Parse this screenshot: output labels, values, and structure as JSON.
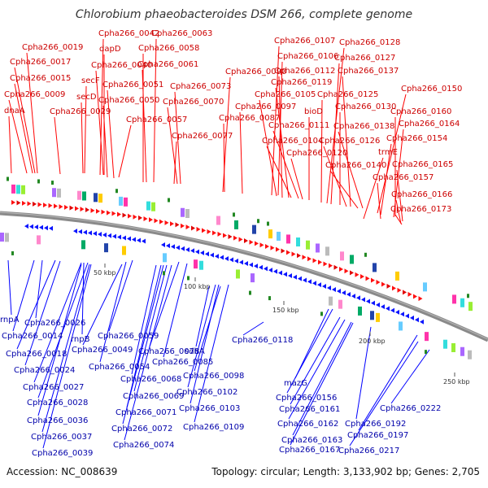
{
  "title": "Chlorobium phaeobacteroides DSM 266, complete genome",
  "accession_text": "Accession: NC_008639",
  "summary_text": "Topology: circular; Length: 3,133,902 bp; Genes: 2,705",
  "colors": {
    "forward_label": "#cc0000",
    "forward_line": "#ff0000",
    "reverse_label": "#0000aa",
    "reverse_line": "#0000ff",
    "backbone": "#808080",
    "scale_text": "#333333"
  },
  "scale_ticks": [
    "50 kbp",
    "100 kbp",
    "150 kbp",
    "200 kbp",
    "250 kbp"
  ],
  "forward_labels": [
    "Cpha266_0019",
    "Cpha266_0017",
    "Cpha266_0015",
    "Cpha266_0009",
    "dnaA",
    "Cpha266_0042",
    "dapD",
    "Cpha266_0040",
    "secF",
    "secD",
    "Cpha266_0029",
    "Cpha266_0063",
    "Cpha266_0058",
    "Cpha266_0061",
    "Cpha266_0051",
    "Cpha266_0050",
    "Cpha266_0057",
    "Cpha266_0073",
    "Cpha266_0070",
    "Cpha266_0077",
    "Cpha266_0090",
    "Cpha266_0097",
    "Cpha266_0087",
    "Cpha266_0107",
    "Cpha266_0106",
    "Cpha266_0112",
    "Cpha266_0119",
    "Cpha266_0105",
    "bioD",
    "Cpha266_0111",
    "Cpha266_0104",
    "Cpha266_0120",
    "Cpha266_0128",
    "Cpha266_0127",
    "Cpha266_0137",
    "Cpha266_0125",
    "Cpha266_0130",
    "Cpha266_0138",
    "Cpha266_0126",
    "Cpha266_0140",
    "Cpha266_0150",
    "Cpha266_0160",
    "Cpha266_0164",
    "Cpha266_0154",
    "trmE",
    "Cpha266_0165",
    "Cpha266_0157",
    "Cpha266_0166",
    "Cpha266_0173"
  ],
  "reverse_labels": [
    "rnpA",
    "Cpha266_0026",
    "Cpha266_0014",
    "rnpB",
    "Cpha266_0018",
    "Cpha266_0024",
    "Cpha266_0027",
    "Cpha266_0028",
    "Cpha266_0036",
    "Cpha266_0037",
    "Cpha266_0039",
    "Cpha266_0059",
    "Cpha266_0049",
    "Cpha266_0054",
    "Cpha266_0078",
    "Cpha266_0085",
    "Cpha266_0068",
    "Cpha266_0069",
    "Cpha266_0071",
    "Cpha266_0072",
    "Cpha266_0074",
    "sdhA",
    "Cpha266_0098",
    "Cpha266_0102",
    "Cpha266_0103",
    "Cpha266_0109",
    "Cpha266_0118",
    "mazG",
    "Cpha266_0156",
    "Cpha266_0161",
    "Cpha266_0162",
    "Cpha266_0163",
    "Cpha266_0167",
    "Cpha266_0192",
    "Cpha266_0197",
    "Cpha266_0217",
    "Cpha266_0222"
  ]
}
